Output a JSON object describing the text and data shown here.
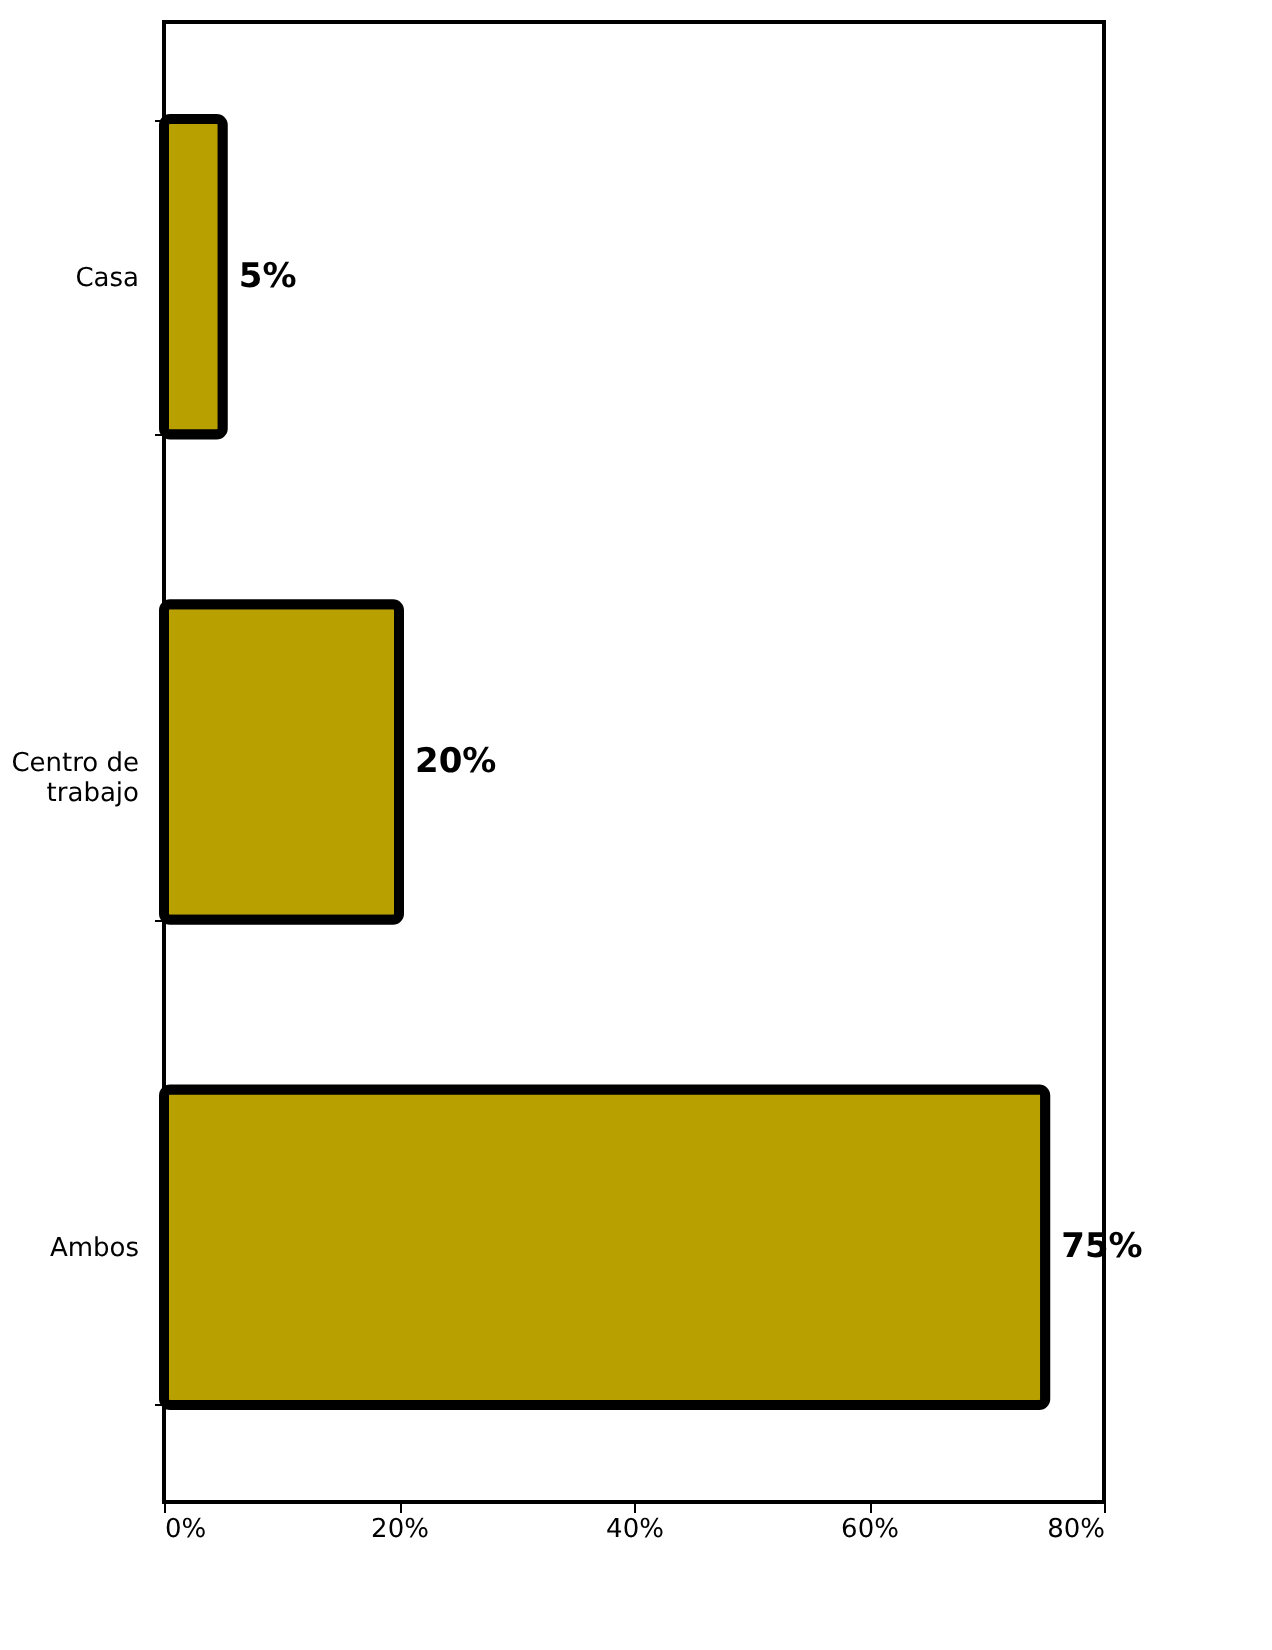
{
  "chart_data": {
    "type": "bar",
    "orientation": "horizontal",
    "categories": [
      "Casa",
      "Centro de\ntrabajo",
      "Ambos"
    ],
    "values": [
      5,
      20,
      75
    ],
    "color": "#b8a000",
    "value_labels": [
      "5%",
      "20%",
      "75%"
    ],
    "xlim": [
      0,
      80
    ],
    "xticks": [
      {
        "value": 0,
        "label": "0%"
      },
      {
        "value": 20,
        "label": "20%"
      },
      {
        "value": 40,
        "label": "40%"
      },
      {
        "value": 60,
        "label": "60%"
      },
      {
        "value": 80,
        "label": "80%"
      }
    ],
    "grid": false
  }
}
